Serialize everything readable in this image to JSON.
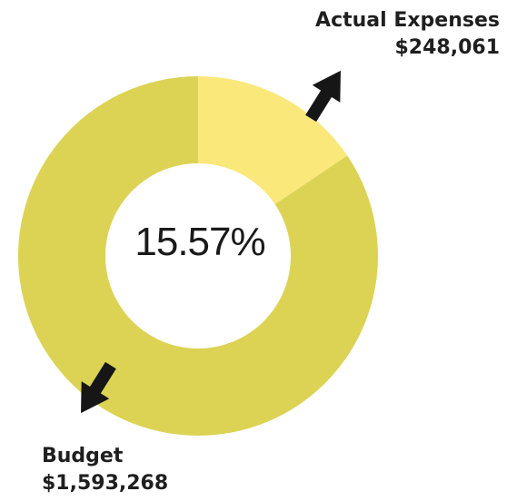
{
  "chart_data": {
    "type": "pie",
    "center_label": "15.57%",
    "slices": [
      {
        "label": "Actual Expenses",
        "value_label": "$248,061",
        "value": 248061,
        "color": "#fae87a"
      },
      {
        "label": "Budget",
        "value_label": "$1,593,268",
        "value": 1593268,
        "color": "#dcd355"
      }
    ]
  }
}
